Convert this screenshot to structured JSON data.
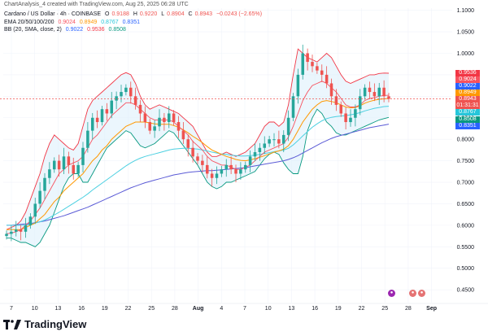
{
  "header": {
    "title": "ChartAnalysis_4 created with TradingView.com, Aug 25, 2025 06:28 UTC"
  },
  "legend": {
    "symbol": "Cardano / US Dollar · 4h · COINBASE",
    "o_label": "O",
    "o_value": "0.9188",
    "h_label": "H",
    "h_value": "0.9220",
    "l_label": "L",
    "l_value": "0.8904",
    "c_label": "C",
    "c_value": "0.8943",
    "change": "−0.0243 (−2.65%)",
    "ema_label": "EMA 20/50/100/200",
    "ema_values": [
      "0.9024",
      "0.8949",
      "0.8767",
      "0.8351"
    ],
    "bb_label": "BB (20, SMA, close, 2)",
    "bb_values": [
      "0.9022",
      "0.9536",
      "0.8508"
    ]
  },
  "colors": {
    "up": "#26a69a",
    "down": "#ef5350",
    "ema20": "#f7525f",
    "ema50": "#ff9800",
    "ema100": "#4dd0e1",
    "ema200": "#5b5bd6",
    "bb_basis": "#2962ff",
    "bb_bands": "#f23645",
    "bb_fill": "#e3f2fd",
    "axis_text": "#131722",
    "price_line": "#ef5350"
  },
  "price_labels": [
    {
      "text": "0.9536",
      "color": "#f23645"
    },
    {
      "text": "0.9024",
      "color": "#f7525f"
    },
    {
      "text": "0.9022",
      "color": "#2962ff"
    },
    {
      "text": "0.8949",
      "color": "#ff9800"
    },
    {
      "text": "0.8943",
      "color": "#ef5350"
    },
    {
      "text": "01:31:31",
      "color": "#ef5350"
    },
    {
      "text": "0.8767",
      "color": "#26c6da"
    },
    {
      "text": "0.8508",
      "color": "#089981"
    },
    {
      "text": "0.8351",
      "color": "#2962ff"
    }
  ],
  "footer": {
    "brand": "TradingView"
  },
  "chart_data": {
    "type": "candlestick",
    "timeframe": "4h",
    "symbol": "ADA/USD",
    "y_ticks": [
      "1.1000",
      "1.0500",
      "1.0000",
      "0.9500",
      "0.9000",
      "0.8500",
      "0.8000",
      "0.7500",
      "0.7000",
      "0.6500",
      "0.6000",
      "0.5500",
      "0.5000",
      "0.4500"
    ],
    "ylim": [
      0.42,
      1.105
    ],
    "x_ticks": [
      "7",
      "10",
      "13",
      "16",
      "19",
      "22",
      "25",
      "28",
      "Aug",
      "4",
      "7",
      "10",
      "13",
      "16",
      "19",
      "22",
      "25",
      "28",
      "Sep"
    ],
    "last_close": 0.8943,
    "closes": [
      0.58,
      0.585,
      0.59,
      0.585,
      0.6,
      0.62,
      0.65,
      0.68,
      0.71,
      0.73,
      0.75,
      0.73,
      0.76,
      0.74,
      0.72,
      0.74,
      0.78,
      0.82,
      0.85,
      0.84,
      0.87,
      0.86,
      0.89,
      0.9,
      0.91,
      0.92,
      0.9,
      0.88,
      0.86,
      0.84,
      0.82,
      0.83,
      0.85,
      0.84,
      0.86,
      0.84,
      0.82,
      0.8,
      0.78,
      0.76,
      0.75,
      0.74,
      0.72,
      0.71,
      0.72,
      0.73,
      0.74,
      0.73,
      0.72,
      0.73,
      0.74,
      0.76,
      0.77,
      0.78,
      0.79,
      0.8,
      0.8,
      0.79,
      0.81,
      0.85,
      0.9,
      0.95,
      1.0,
      0.98,
      0.97,
      0.96,
      0.95,
      0.93,
      0.9,
      0.88,
      0.86,
      0.84,
      0.85,
      0.87,
      0.9,
      0.92,
      0.91,
      0.9,
      0.92,
      0.9,
      0.894
    ],
    "ema20": [
      0.58,
      0.582,
      0.585,
      0.59,
      0.6,
      0.61,
      0.625,
      0.64,
      0.66,
      0.68,
      0.7,
      0.72,
      0.73,
      0.74,
      0.745,
      0.75,
      0.76,
      0.78,
      0.8,
      0.81,
      0.825,
      0.84,
      0.855,
      0.865,
      0.875,
      0.885,
      0.885,
      0.88,
      0.87,
      0.86,
      0.85,
      0.845,
      0.845,
      0.845,
      0.845,
      0.84,
      0.83,
      0.82,
      0.81,
      0.795,
      0.785,
      0.775,
      0.76,
      0.75,
      0.745,
      0.74,
      0.74,
      0.735,
      0.73,
      0.73,
      0.735,
      0.74,
      0.75,
      0.76,
      0.77,
      0.775,
      0.78,
      0.785,
      0.79,
      0.805,
      0.83,
      0.86,
      0.89,
      0.91,
      0.925,
      0.93,
      0.935,
      0.93,
      0.92,
      0.91,
      0.895,
      0.88,
      0.875,
      0.875,
      0.88,
      0.89,
      0.895,
      0.897,
      0.9,
      0.902,
      0.9024
    ],
    "ema50": [
      0.59,
      0.59,
      0.59,
      0.59,
      0.595,
      0.6,
      0.605,
      0.615,
      0.625,
      0.64,
      0.655,
      0.665,
      0.68,
      0.69,
      0.7,
      0.71,
      0.72,
      0.735,
      0.75,
      0.76,
      0.775,
      0.785,
      0.8,
      0.81,
      0.82,
      0.83,
      0.835,
      0.84,
      0.84,
      0.84,
      0.838,
      0.836,
      0.835,
      0.835,
      0.835,
      0.832,
      0.828,
      0.822,
      0.815,
      0.807,
      0.8,
      0.792,
      0.783,
      0.775,
      0.77,
      0.765,
      0.76,
      0.757,
      0.753,
      0.751,
      0.75,
      0.752,
      0.755,
      0.758,
      0.762,
      0.766,
      0.77,
      0.773,
      0.777,
      0.785,
      0.8,
      0.82,
      0.84,
      0.855,
      0.87,
      0.88,
      0.888,
      0.89,
      0.888,
      0.885,
      0.88,
      0.875,
      0.873,
      0.874,
      0.878,
      0.884,
      0.888,
      0.891,
      0.893,
      0.894,
      0.8949
    ],
    "ema100": [
      0.6,
      0.6,
      0.6,
      0.6,
      0.6,
      0.602,
      0.605,
      0.608,
      0.612,
      0.618,
      0.624,
      0.63,
      0.637,
      0.644,
      0.651,
      0.658,
      0.665,
      0.673,
      0.682,
      0.69,
      0.698,
      0.706,
      0.714,
      0.722,
      0.73,
      0.738,
      0.745,
      0.751,
      0.756,
      0.76,
      0.763,
      0.766,
      0.769,
      0.772,
      0.775,
      0.777,
      0.778,
      0.779,
      0.779,
      0.778,
      0.777,
      0.775,
      0.773,
      0.77,
      0.768,
      0.766,
      0.765,
      0.763,
      0.762,
      0.761,
      0.761,
      0.762,
      0.763,
      0.765,
      0.767,
      0.769,
      0.771,
      0.773,
      0.775,
      0.779,
      0.787,
      0.797,
      0.808,
      0.818,
      0.828,
      0.836,
      0.843,
      0.848,
      0.851,
      0.853,
      0.854,
      0.855,
      0.857,
      0.859,
      0.862,
      0.866,
      0.869,
      0.872,
      0.874,
      0.876,
      0.8767
    ],
    "ema200": [
      0.6,
      0.6,
      0.601,
      0.602,
      0.603,
      0.604,
      0.606,
      0.608,
      0.61,
      0.613,
      0.616,
      0.619,
      0.622,
      0.626,
      0.63,
      0.634,
      0.638,
      0.642,
      0.647,
      0.652,
      0.657,
      0.662,
      0.667,
      0.672,
      0.677,
      0.682,
      0.687,
      0.691,
      0.695,
      0.699,
      0.702,
      0.705,
      0.708,
      0.711,
      0.714,
      0.717,
      0.719,
      0.721,
      0.723,
      0.724,
      0.725,
      0.726,
      0.727,
      0.727,
      0.728,
      0.729,
      0.73,
      0.731,
      0.732,
      0.733,
      0.734,
      0.736,
      0.738,
      0.74,
      0.742,
      0.744,
      0.746,
      0.748,
      0.75,
      0.753,
      0.757,
      0.762,
      0.768,
      0.774,
      0.78,
      0.786,
      0.792,
      0.797,
      0.802,
      0.806,
      0.809,
      0.812,
      0.815,
      0.818,
      0.821,
      0.824,
      0.827,
      0.829,
      0.831,
      0.833,
      0.8351
    ],
    "bb_upper": [
      0.59,
      0.595,
      0.6,
      0.61,
      0.63,
      0.66,
      0.69,
      0.72,
      0.76,
      0.79,
      0.81,
      0.8,
      0.79,
      0.78,
      0.775,
      0.79,
      0.83,
      0.87,
      0.89,
      0.9,
      0.91,
      0.92,
      0.93,
      0.94,
      0.95,
      0.955,
      0.95,
      0.93,
      0.9,
      0.88,
      0.87,
      0.875,
      0.88,
      0.875,
      0.87,
      0.865,
      0.86,
      0.85,
      0.84,
      0.83,
      0.81,
      0.79,
      0.77,
      0.76,
      0.76,
      0.765,
      0.77,
      0.765,
      0.76,
      0.765,
      0.77,
      0.78,
      0.79,
      0.81,
      0.83,
      0.84,
      0.84,
      0.83,
      0.84,
      0.88,
      0.95,
      1.01,
      1.0,
      0.99,
      0.985,
      0.98,
      0.99,
      1.0,
      0.99,
      0.97,
      0.95,
      0.935,
      0.93,
      0.935,
      0.94,
      0.945,
      0.95,
      0.95,
      0.953,
      0.954,
      0.9536
    ],
    "bb_lower": [
      0.57,
      0.57,
      0.565,
      0.56,
      0.56,
      0.555,
      0.55,
      0.56,
      0.58,
      0.6,
      0.63,
      0.66,
      0.69,
      0.71,
      0.72,
      0.72,
      0.7,
      0.7,
      0.72,
      0.74,
      0.76,
      0.78,
      0.79,
      0.8,
      0.81,
      0.82,
      0.815,
      0.8,
      0.785,
      0.78,
      0.785,
      0.79,
      0.8,
      0.81,
      0.82,
      0.815,
      0.8,
      0.785,
      0.77,
      0.755,
      0.74,
      0.72,
      0.7,
      0.69,
      0.685,
      0.69,
      0.7,
      0.7,
      0.705,
      0.71,
      0.715,
      0.72,
      0.725,
      0.74,
      0.755,
      0.765,
      0.77,
      0.765,
      0.745,
      0.73,
      0.72,
      0.72,
      0.76,
      0.82,
      0.85,
      0.87,
      0.86,
      0.84,
      0.83,
      0.815,
      0.81,
      0.81,
      0.815,
      0.82,
      0.825,
      0.83,
      0.835,
      0.84,
      0.845,
      0.848,
      0.8508
    ]
  }
}
